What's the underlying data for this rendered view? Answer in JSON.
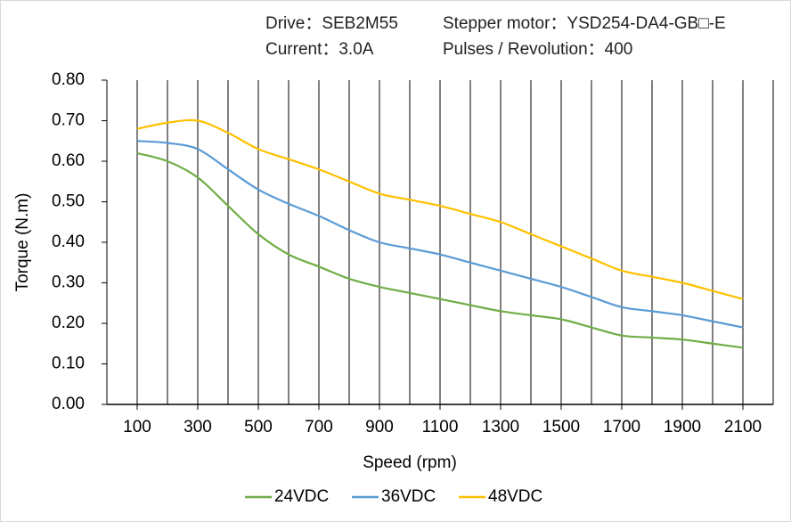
{
  "chart_data": {
    "type": "line",
    "header": [
      "Drive：SEB2M55",
      "Stepper motor：YSD254-DA4-GB□-E",
      "Current：3.0A",
      "Pulses / Revolution：400"
    ],
    "x_label": "Speed  (rpm)",
    "y_label": "Torque (N.m)",
    "x": [
      100,
      200,
      300,
      400,
      500,
      600,
      700,
      800,
      900,
      1000,
      1100,
      1200,
      1300,
      1400,
      1500,
      1600,
      1700,
      1800,
      1900,
      2000,
      2100
    ],
    "series": [
      {
        "name": "24VDC",
        "color": "#70ad47",
        "values": [
          0.62,
          0.6,
          0.56,
          0.49,
          0.42,
          0.37,
          0.34,
          0.31,
          0.29,
          0.275,
          0.26,
          0.245,
          0.23,
          0.22,
          0.21,
          0.19,
          0.17,
          0.165,
          0.16,
          0.15,
          0.14
        ]
      },
      {
        "name": "36VDC",
        "color": "#5b9bd5",
        "values": [
          0.65,
          0.645,
          0.63,
          0.58,
          0.53,
          0.495,
          0.465,
          0.43,
          0.4,
          0.385,
          0.37,
          0.35,
          0.33,
          0.31,
          0.29,
          0.265,
          0.24,
          0.23,
          0.22,
          0.205,
          0.19
        ]
      },
      {
        "name": "48VDC",
        "color": "#ffc000",
        "values": [
          0.68,
          0.695,
          0.7,
          0.67,
          0.63,
          0.605,
          0.58,
          0.55,
          0.52,
          0.505,
          0.49,
          0.47,
          0.45,
          0.42,
          0.39,
          0.36,
          0.33,
          0.315,
          0.3,
          0.28,
          0.26
        ]
      }
    ],
    "xlim": [
      0,
      2200
    ],
    "xticks": [
      100,
      300,
      500,
      700,
      900,
      1100,
      1300,
      1500,
      1700,
      1900,
      2100
    ],
    "xgrid": [
      0,
      100,
      200,
      300,
      400,
      500,
      600,
      700,
      800,
      900,
      1000,
      1100,
      1200,
      1300,
      1400,
      1500,
      1600,
      1700,
      1800,
      1900,
      2000,
      2100,
      2200
    ],
    "ylim": [
      0,
      0.8
    ],
    "yticks": [
      {
        "value": 0,
        "label": "0.00"
      },
      {
        "value": 0.1,
        "label": "0.10"
      },
      {
        "value": 0.2,
        "label": "0.20"
      },
      {
        "value": 0.3,
        "label": "0.30"
      },
      {
        "value": 0.4,
        "label": "0.40"
      },
      {
        "value": 0.5,
        "label": "0.50"
      },
      {
        "value": 0.6,
        "label": "0.60"
      },
      {
        "value": 0.7,
        "label": "0.70"
      },
      {
        "value": 0.8,
        "label": "0.80"
      }
    ],
    "grid": true,
    "legend": "bottom"
  }
}
